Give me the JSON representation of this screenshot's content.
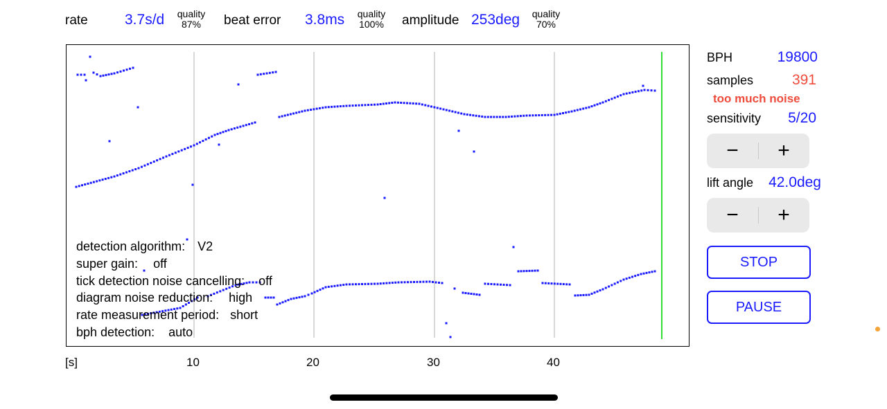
{
  "header": {
    "rate_label": "rate",
    "rate_value": "3.7s/d",
    "rate_quality_label": "quality",
    "rate_quality_value": "87%",
    "beat_error_label": "beat error",
    "beat_error_value": "3.8ms",
    "beat_quality_label": "quality",
    "beat_quality_value": "100%",
    "amplitude_label": "amplitude",
    "amplitude_value": "253deg",
    "amplitude_quality_label": "quality",
    "amplitude_quality_value": "70%"
  },
  "plot": {
    "x_unit_label": "[s]",
    "x_ticks": [
      "10",
      "20",
      "30",
      "40"
    ],
    "colors": {
      "dots": "#1a1aff",
      "grid": "#cccccc",
      "cursor": "#33dd33"
    },
    "detection_info": [
      {
        "label": "detection algorithm:",
        "value": "V2"
      },
      {
        "label": "super gain:",
        "value": "off"
      },
      {
        "label": "tick detection noise cancelling:",
        "value": "off"
      },
      {
        "label": "diagram noise reduction:",
        "value": "high"
      },
      {
        "label": "rate measurement period:",
        "value": "short"
      },
      {
        "label": "bph detection:",
        "value": "auto"
      }
    ]
  },
  "sidebar": {
    "bph_label": "BPH",
    "bph_value": "19800",
    "samples_label": "samples",
    "samples_value": "391",
    "warning": "too much noise",
    "sensitivity_label": "sensitivity",
    "sensitivity_value": "5/20",
    "lift_angle_label": "lift angle",
    "lift_angle_value": "42.0deg",
    "minus_glyph": "−",
    "plus_glyph": "+",
    "stop_label": "STOP",
    "pause_label": "PAUSE"
  }
}
